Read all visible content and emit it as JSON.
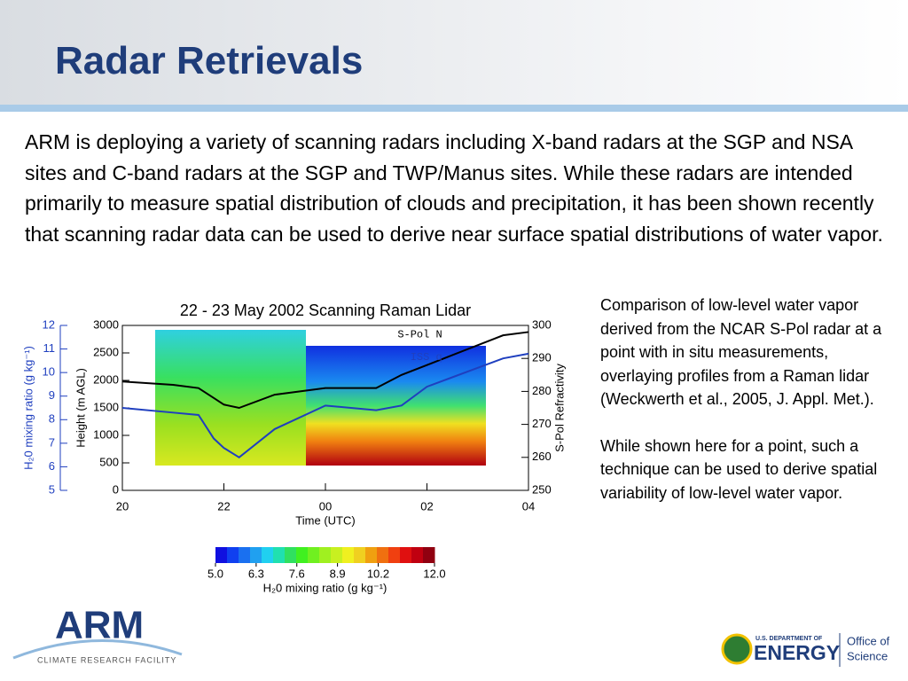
{
  "header": {
    "title": "Radar Retrievals"
  },
  "body": {
    "paragraph": "ARM is deploying a variety of scanning radars including X-band radars at the SGP and NSA sites and C-band radars at the SGP and TWP/Manus sites. While these radars are intended primarily to measure spatial distribution of clouds and precipitation, it has been shown recently that scanning radar data can be used to derive near surface spatial distributions of water vapor."
  },
  "caption": {
    "paragraphs": [
      "Comparison of low-level water vapor derived from the NCAR S-Pol radar at a point with in situ measurements, overlaying profiles from a Raman lidar (Weckwerth et al., 2005, J. Appl. Met.).",
      "While shown here for a point, such a technique can be used to derive spatial variability of low-level water vapor."
    ]
  },
  "chart_data": {
    "type": "line",
    "title": "22 - 23 May 2002 Scanning Raman Lidar",
    "x_label": "Time (UTC)",
    "y_label": "Height (m AGL)",
    "y2_label": "S-Pol Refractivity",
    "y3_label": "H₂0 mixing ratio (g kg⁻¹)",
    "x": [
      20,
      21,
      21.5,
      21.8,
      22,
      22.3,
      23,
      24,
      25,
      25.5,
      26,
      27,
      27.5,
      28
    ],
    "xlim": [
      20,
      28
    ],
    "xticks": [
      {
        "value": 20,
        "label": "20"
      },
      {
        "value": 22,
        "label": "22"
      },
      {
        "value": 24,
        "label": "00"
      },
      {
        "value": 26,
        "label": "02"
      },
      {
        "value": 28,
        "label": "04"
      }
    ],
    "ylim": [
      0,
      3000
    ],
    "yticks": [
      0,
      500,
      1000,
      1500,
      2000,
      2500,
      3000
    ],
    "y2lim": [
      250,
      300
    ],
    "y2ticks": [
      250,
      260,
      270,
      280,
      290,
      300
    ],
    "y3lim": [
      5,
      12
    ],
    "y3ticks": [
      5,
      6,
      7,
      8,
      9,
      10,
      11,
      12
    ],
    "series": [
      {
        "name": "S-Pol N",
        "color": "#000000",
        "axis": "y2",
        "values": [
          283,
          282,
          281,
          278,
          276,
          275,
          279,
          281,
          281,
          285,
          288,
          294,
          297,
          298
        ]
      },
      {
        "name": "ISS q",
        "color": "#1f3fbf",
        "axis": "y3",
        "values": [
          8.5,
          8.3,
          8.2,
          7.2,
          6.8,
          6.4,
          7.6,
          8.6,
          8.4,
          8.6,
          9.4,
          10.2,
          10.6,
          10.8
        ]
      }
    ],
    "colorbar": {
      "label": "H₂0 mixing ratio (g kg⁻¹)",
      "lim": [
        5,
        12
      ],
      "ticks": [
        {
          "value": 5,
          "label": "5.0"
        },
        {
          "value": 6.3,
          "label": "6.3"
        },
        {
          "value": 7.6,
          "label": "7.6"
        },
        {
          "value": 8.9,
          "label": "8.9"
        },
        {
          "value": 10.2,
          "label": "10.2"
        },
        {
          "value": 12,
          "label": "12.0"
        }
      ]
    }
  },
  "logos": {
    "arm": "ARM",
    "arm_tagline": "CLIMATE RESEARCH FACILITY",
    "doe_dept": "U.S. DEPARTMENT OF",
    "doe_energy": "ENERGY",
    "office": "Office of",
    "science": "Science"
  }
}
